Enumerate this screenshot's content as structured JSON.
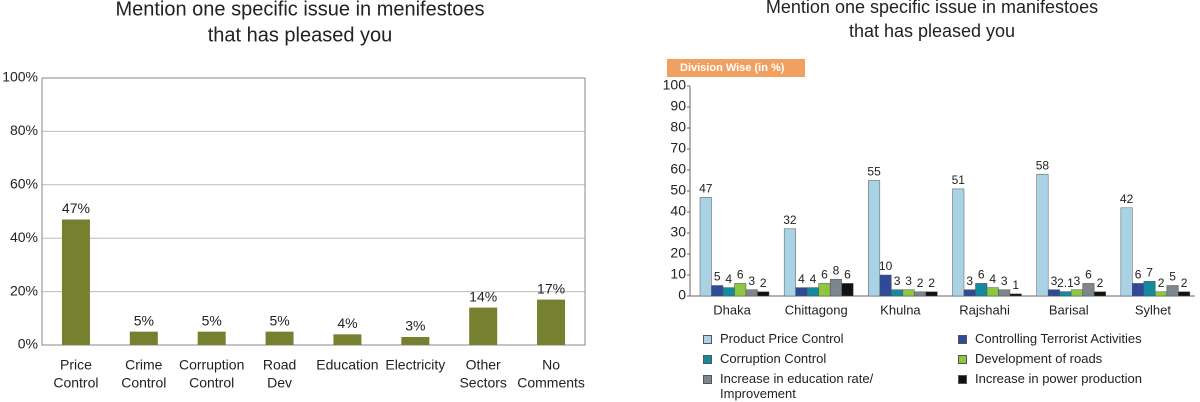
{
  "chart_data": [
    {
      "type": "bar",
      "title": [
        "Mention one specific issue in menifestoes",
        "that has pleased you"
      ],
      "categories": [
        [
          "Price",
          "Control"
        ],
        [
          "Crime",
          "Control"
        ],
        [
          "Corruption",
          "Control"
        ],
        [
          "Road",
          "Dev"
        ],
        [
          "Education"
        ],
        [
          "Electricity"
        ],
        [
          "Other",
          "Sectors"
        ],
        [
          "No",
          "Comments"
        ]
      ],
      "values": [
        47,
        5,
        5,
        5,
        4,
        3,
        14,
        17
      ],
      "value_labels": [
        "47%",
        "5%",
        "5%",
        "5%",
        "4%",
        "3%",
        "14%",
        "17%"
      ],
      "color": "#76802f",
      "ylim": [
        0,
        100
      ],
      "yticks": [
        {
          "value": 0,
          "label": "0%"
        },
        {
          "value": 20,
          "label": "20%"
        },
        {
          "value": 40,
          "label": "40%"
        },
        {
          "value": 60,
          "label": "60%"
        },
        {
          "value": 80,
          "label": "80%"
        },
        {
          "value": 100,
          "label": "100%"
        }
      ],
      "grid": true
    },
    {
      "type": "grouped-bar",
      "title": [
        "Mention one specific issue in manifestoes",
        "that has pleased you"
      ],
      "badge": "Division Wise (in %)",
      "categories": [
        "Dhaka",
        "Chittagong",
        "Khulna",
        "Rajshahi",
        "Barisal",
        "Sylhet"
      ],
      "series": [
        {
          "name": "Product Price Control",
          "color": "#a9d3e5",
          "values": [
            47,
            32,
            55,
            51,
            58,
            42
          ]
        },
        {
          "name": "Controlling Terrorist Activities",
          "color": "#2f4a99",
          "values": [
            5,
            4,
            10,
            3,
            3,
            6
          ]
        },
        {
          "name": "Corruption Control",
          "color": "#158a9e",
          "values": [
            4,
            4,
            3,
            6,
            2.1,
            7
          ]
        },
        {
          "name": "Development of roads",
          "color": "#8dc63f",
          "values": [
            6,
            6,
            3,
            4,
            3,
            2
          ]
        },
        {
          "name": "Increase in education rate/ Improvement",
          "color": "#7d868c",
          "values": [
            3,
            8,
            2,
            3,
            6,
            5
          ]
        },
        {
          "name": "Increase in power production",
          "color": "#111111",
          "values": [
            2,
            6,
            2,
            1,
            2,
            2
          ]
        }
      ],
      "ylim": [
        0,
        100
      ],
      "yticks": [
        0,
        10,
        20,
        30,
        40,
        50,
        60,
        70,
        80,
        90,
        100
      ],
      "grid": false,
      "legend": "bottom"
    }
  ]
}
